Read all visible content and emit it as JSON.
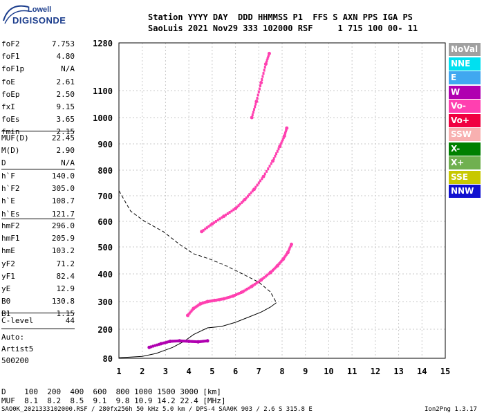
{
  "logo": {
    "line1": "Lowell",
    "line2": "DIGISONDE"
  },
  "header": {
    "line1": "Station YYYY DAY  DDD HHMMSS P1  FFS S AXN PPS IGA PS",
    "line2": "SaoLuis 2021 Nov29 333 102000 RSF     1 715 100 00- 11"
  },
  "params": {
    "g1": [
      {
        "k": "foF2",
        "v": "7.753"
      },
      {
        "k": "foF1",
        "v": "4.80"
      },
      {
        "k": "foF1p",
        "v": "N/A"
      },
      {
        "k": "foE",
        "v": "2.61"
      },
      {
        "k": "foEp",
        "v": "2.50"
      },
      {
        "k": "fxI",
        "v": "9.15"
      },
      {
        "k": "foEs",
        "v": "3.65"
      },
      {
        "k": "fmin",
        "v": "2.15"
      }
    ],
    "g2": [
      {
        "k": "MUF(D)",
        "v": "22.45"
      },
      {
        "k": "M(D)",
        "v": "2.90"
      },
      {
        "k": "D",
        "v": "N/A"
      }
    ],
    "g3": [
      {
        "k": "h`F",
        "v": "140.0"
      },
      {
        "k": "h`F2",
        "v": "305.0"
      },
      {
        "k": "h`E",
        "v": "108.7"
      },
      {
        "k": "h`Es",
        "v": "121.7"
      }
    ],
    "g4": [
      {
        "k": "hmF2",
        "v": "296.0"
      },
      {
        "k": "hmF1",
        "v": "205.9"
      },
      {
        "k": "hmE",
        "v": "103.2"
      },
      {
        "k": "yF2",
        "v": "71.2"
      },
      {
        "k": "yF1",
        "v": "82.4"
      },
      {
        "k": "yE",
        "v": "12.9"
      },
      {
        "k": "B0",
        "v": "130.8"
      },
      {
        "k": "B1",
        "v": "1.15"
      }
    ],
    "g5": [
      {
        "k": "C-level",
        "v": "44"
      }
    ]
  },
  "autoscale": {
    "line1": "Auto:",
    "line2": "Artist5",
    "line3": "500200"
  },
  "legend": [
    {
      "label": "NoVal",
      "color": "#a0a0a0"
    },
    {
      "label": "NNE",
      "color": "#00e0f0"
    },
    {
      "label": "E",
      "color": "#40a8f0"
    },
    {
      "label": "W",
      "color": "#b000b0"
    },
    {
      "label": "Vo-",
      "color": "#ff40b0"
    },
    {
      "label": "Vo+",
      "color": "#f00040"
    },
    {
      "label": "SSW",
      "color": "#f8b0b0"
    },
    {
      "label": "X-",
      "color": "#008000"
    },
    {
      "label": "X+",
      "color": "#70b050"
    },
    {
      "label": "SSE",
      "color": "#c8c800"
    },
    {
      "label": "NNW",
      "color": "#1010d0"
    }
  ],
  "mufTable": {
    "line1": "D    100  200  400  600  800 1000 1500 3000 [km]",
    "line2": "MUF  8.1  8.2  8.5  9.1  9.8 10.9 14.2 22.4 [MHz]"
  },
  "footer": {
    "left": "SAO0K_2021333102000.RSF / 280fx256h 50 kHz 5.0 km / DPS-4 SAA0K 903 / 2.6 S 315.8 E",
    "right": "Ion2Png 1.3.17"
  },
  "chart_data": {
    "type": "scatter",
    "title": "",
    "xlabel": "",
    "ylabel": "",
    "xlim": [
      1,
      15
    ],
    "ylim": [
      80,
      1280
    ],
    "x_ticks": [
      "1",
      "2",
      "3",
      "4",
      "5",
      "6",
      "7",
      "8",
      "9",
      "10",
      "11",
      "12",
      "13",
      "14",
      "15"
    ],
    "y_ticks": [
      "80",
      "200",
      "300",
      "400",
      "500",
      "600",
      "700",
      "800",
      "900",
      "1000",
      "1100",
      "1280"
    ],
    "grid": true,
    "traces": [
      {
        "name": "",
        "color": "#ff40b0",
        "points": [
          [
            3.95,
            250
          ],
          [
            4.2,
            275
          ],
          [
            4.5,
            292
          ],
          [
            4.8,
            300
          ],
          [
            5.1,
            304
          ],
          [
            5.5,
            310
          ],
          [
            5.9,
            320
          ],
          [
            6.3,
            335
          ],
          [
            6.7,
            355
          ],
          [
            7.1,
            378
          ],
          [
            7.5,
            405
          ],
          [
            7.8,
            430
          ],
          [
            8.05,
            455
          ],
          [
            8.25,
            480
          ],
          [
            8.4,
            510
          ]
        ]
      },
      {
        "name": "",
        "color": "#ff40b0",
        "points": [
          [
            4.55,
            560
          ],
          [
            5.0,
            590
          ],
          [
            5.5,
            620
          ],
          [
            6.0,
            650
          ],
          [
            6.4,
            685
          ],
          [
            6.8,
            725
          ],
          [
            7.2,
            775
          ],
          [
            7.6,
            835
          ],
          [
            7.9,
            890
          ],
          [
            8.1,
            930
          ],
          [
            8.2,
            960
          ]
        ]
      },
      {
        "name": "",
        "color": "#ff40b0",
        "points": [
          [
            6.7,
            1000
          ],
          [
            6.9,
            1060
          ],
          [
            7.1,
            1130
          ],
          [
            7.3,
            1200
          ],
          [
            7.45,
            1240
          ]
        ]
      },
      {
        "name": "",
        "color": "#b000b0",
        "points": [
          [
            2.3,
            125
          ],
          [
            2.8,
            140
          ],
          [
            3.2,
            150
          ],
          [
            3.6,
            152
          ],
          [
            4.0,
            150
          ],
          [
            4.4,
            148
          ],
          [
            4.8,
            152
          ]
        ]
      }
    ],
    "profile_solid": [
      [
        1.0,
        82
      ],
      [
        2.0,
        88
      ],
      [
        2.6,
        100
      ],
      [
        3.3,
        125
      ],
      [
        3.8,
        150
      ],
      [
        4.2,
        178
      ],
      [
        4.8,
        205
      ],
      [
        5.4,
        210
      ],
      [
        6.0,
        225
      ],
      [
        6.6,
        245
      ],
      [
        7.1,
        262
      ],
      [
        7.5,
        280
      ],
      [
        7.753,
        296
      ]
    ],
    "profile_dashed": [
      [
        1.0,
        720
      ],
      [
        1.5,
        640
      ],
      [
        2.1,
        600
      ],
      [
        2.9,
        560
      ],
      [
        3.6,
        510
      ],
      [
        4.2,
        475
      ],
      [
        4.9,
        455
      ],
      [
        5.6,
        430
      ],
      [
        6.3,
        400
      ],
      [
        7.0,
        370
      ],
      [
        7.5,
        335
      ],
      [
        7.753,
        296
      ]
    ]
  }
}
